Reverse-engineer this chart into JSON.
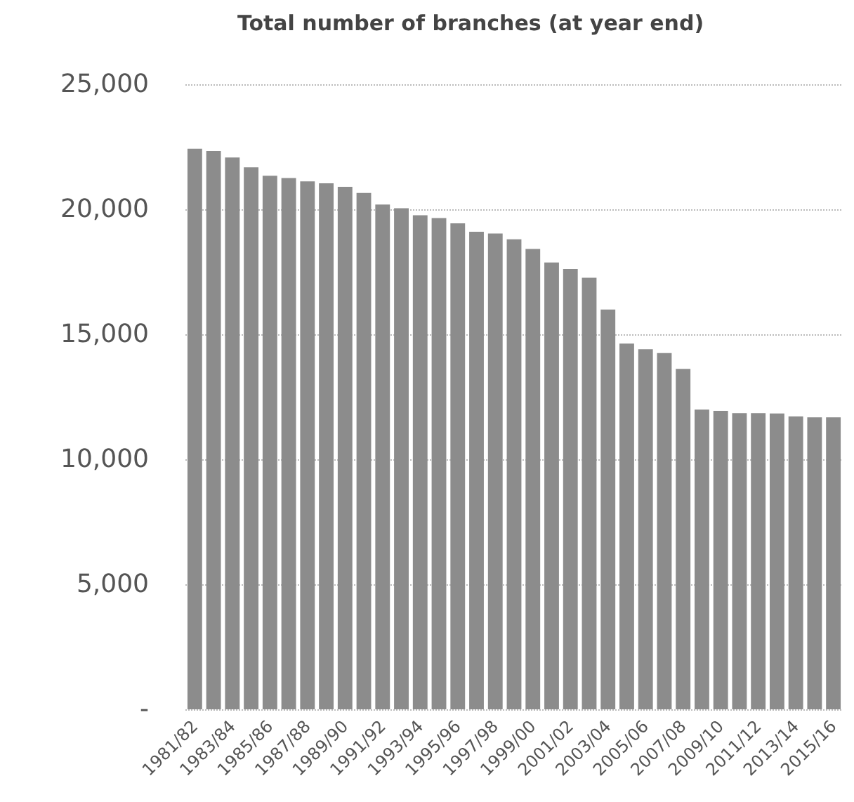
{
  "chart_data": {
    "type": "bar",
    "title": "Total number of branches (at year end)",
    "categories": [
      "1981/82",
      null,
      "1983/84",
      null,
      "1985/86",
      null,
      "1987/88",
      null,
      "1989/90",
      null,
      "1991/92",
      null,
      "1993/94",
      null,
      "1995/96",
      null,
      "1997/98",
      null,
      "1999/00",
      null,
      "2001/02",
      null,
      "2003/04",
      null,
      "2005/06",
      null,
      "2007/08",
      null,
      "2009/10",
      null,
      "2011/12",
      null,
      "2013/14",
      null,
      "2015/16"
    ],
    "values": [
      22420,
      22330,
      22070,
      21680,
      21340,
      21250,
      21120,
      21040,
      20900,
      20650,
      20190,
      20040,
      19760,
      19650,
      19440,
      19100,
      19030,
      18800,
      18410,
      17870,
      17610,
      17260,
      15990,
      14630,
      14400,
      14250,
      13620,
      11990,
      11940,
      11850,
      11850,
      11830,
      11710,
      11680,
      11680
    ],
    "color": "#8c8c8c",
    "ylim": [
      0,
      25000
    ],
    "yticks": [
      {
        "value": 0,
        "label": "-"
      },
      {
        "value": 5000,
        "label": "5,000"
      },
      {
        "value": 10000,
        "label": "10,000"
      },
      {
        "value": 15000,
        "label": "15,000"
      },
      {
        "value": 20000,
        "label": "20,000"
      },
      {
        "value": 25000,
        "label": "25,000"
      }
    ],
    "grid": "y"
  }
}
